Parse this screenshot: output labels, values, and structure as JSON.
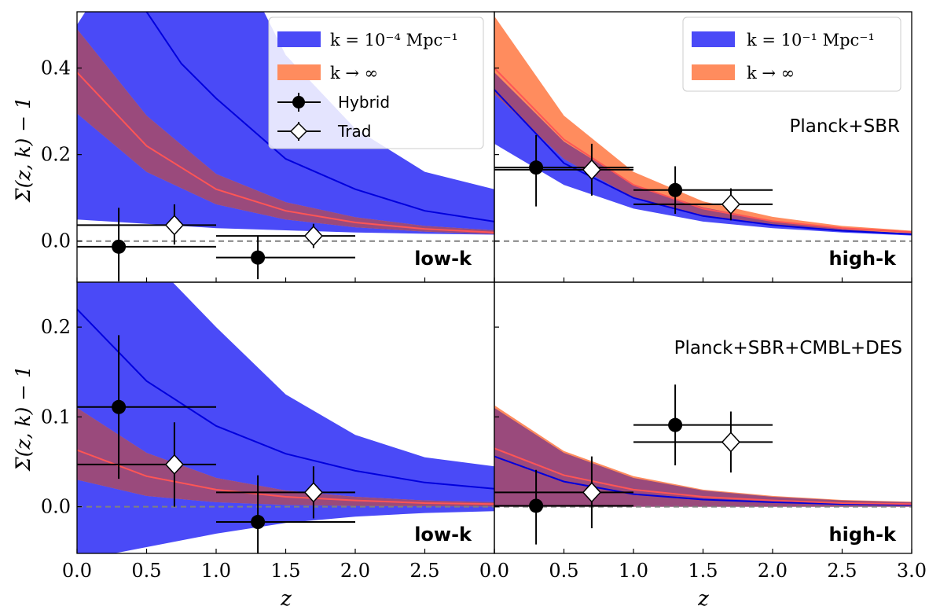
{
  "figure": {
    "ylabel": "Σ(z, k) − 1",
    "xlabel": "z",
    "legend_left": {
      "band_low": "k = 10⁻⁴ Mpc⁻¹",
      "band_inf": "k → ∞",
      "hybrid": "Hybrid",
      "trad": "Trad"
    },
    "legend_right": {
      "band_low": "k = 10⁻¹ Mpc⁻¹",
      "band_inf": "k → ∞"
    }
  },
  "colors": {
    "band_low": "#4a4af7",
    "band_inf": "#ff8c5e",
    "band_overlap": "#9a4a7c",
    "curve_low": "#0000dd",
    "curve_inf": "#ff5555",
    "zero_line": "#808080"
  },
  "chart_data": [
    {
      "type": "line",
      "panel": "top-left",
      "label": "low-k",
      "ylabel": "Σ(z, k) − 1",
      "xlim": [
        0,
        3
      ],
      "ylim": [
        -0.095,
        0.53
      ],
      "xticks": [
        0.0,
        0.5,
        1.0,
        1.5,
        2.0,
        2.5,
        3.0
      ],
      "yticks": [
        0.0,
        0.2,
        0.4
      ],
      "ytick_labels": [
        "0.0",
        "0.2",
        "0.4"
      ],
      "show_xticklabels": false,
      "legend": "top-right",
      "band_low": {
        "x": [
          0,
          0.5,
          1,
          1.5,
          2,
          2.5,
          3
        ],
        "lower": [
          0.05,
          0.04,
          0.03,
          0.025,
          0.02,
          0.017,
          0.015
        ],
        "upper": [
          0.5,
          0.75,
          0.75,
          0.43,
          0.26,
          0.16,
          0.12
        ]
      },
      "curve_low": {
        "x": [
          0.4,
          0.5,
          0.75,
          1,
          1.5,
          2,
          2.5,
          3
        ],
        "y": [
          0.75,
          0.53,
          0.41,
          0.33,
          0.19,
          0.12,
          0.07,
          0.045
        ]
      },
      "band_inf": {
        "x": [
          0,
          0.5,
          1,
          1.5,
          2,
          2.5,
          3
        ],
        "lower": [
          0.295,
          0.16,
          0.085,
          0.05,
          0.032,
          0.022,
          0.016
        ],
        "upper": [
          0.49,
          0.29,
          0.155,
          0.09,
          0.055,
          0.035,
          0.025
        ]
      },
      "curve_inf": {
        "x": [
          0,
          0.5,
          1,
          1.5,
          2,
          2.5,
          3
        ],
        "y": [
          0.39,
          0.22,
          0.12,
          0.07,
          0.043,
          0.028,
          0.02
        ]
      },
      "points": [
        {
          "series": "Hybrid",
          "x": 0.3,
          "xerr": [
            0.3,
            0.7
          ],
          "y": -0.013,
          "yerr": [
            0.08,
            0.09
          ]
        },
        {
          "series": "Trad",
          "x": 0.7,
          "xerr": [
            0.7,
            0.3
          ],
          "y": 0.037,
          "yerr": [
            0.045,
            0.048
          ]
        },
        {
          "series": "Hybrid",
          "x": 1.3,
          "xerr": [
            0.3,
            0.7
          ],
          "y": -0.038,
          "yerr": [
            0.05,
            0.05
          ]
        },
        {
          "series": "Trad",
          "x": 1.7,
          "xerr": [
            0.7,
            0.3
          ],
          "y": 0.012,
          "yerr": [
            0.028,
            0.028
          ]
        }
      ]
    },
    {
      "type": "line",
      "panel": "top-right",
      "label": "high-k",
      "annotation": "Planck+SBR",
      "xlim": [
        0,
        3
      ],
      "ylim": [
        -0.095,
        0.53
      ],
      "xticks": [
        0.0,
        0.5,
        1.0,
        1.5,
        2.0,
        2.5,
        3.0
      ],
      "yticks": [
        0.0,
        0.2,
        0.4
      ],
      "show_xticklabels": false,
      "legend": "top-right",
      "band_low": {
        "x": [
          0,
          0.5,
          1,
          1.5,
          2,
          2.5,
          3
        ],
        "lower": [
          0.225,
          0.13,
          0.075,
          0.045,
          0.03,
          0.02,
          0.013
        ],
        "upper": [
          0.39,
          0.23,
          0.13,
          0.078,
          0.047,
          0.028,
          0.017
        ]
      },
      "curve_low": {
        "x": [
          0,
          0.5,
          1,
          1.5,
          2,
          2.5,
          3
        ],
        "y": [
          0.35,
          0.18,
          0.1,
          0.058,
          0.037,
          0.024,
          0.016
        ]
      },
      "band_inf": {
        "x": [
          0,
          0.5,
          1,
          1.5,
          2,
          2.5,
          3
        ],
        "lower": [
          0.34,
          0.19,
          0.1,
          0.058,
          0.036,
          0.024,
          0.017
        ],
        "upper": [
          0.52,
          0.29,
          0.16,
          0.092,
          0.056,
          0.035,
          0.024
        ]
      },
      "curve_inf": {
        "x": [
          0,
          0.5,
          1,
          1.5,
          2,
          2.5,
          3
        ],
        "y": [
          0.4,
          0.235,
          0.13,
          0.075,
          0.046,
          0.03,
          0.021
        ]
      },
      "points": [
        {
          "series": "Hybrid",
          "x": 0.3,
          "xerr": [
            0.3,
            0.7
          ],
          "y": 0.17,
          "yerr": [
            0.09,
            0.075
          ]
        },
        {
          "series": "Trad",
          "x": 0.7,
          "xerr": [
            0.7,
            0.3
          ],
          "y": 0.165,
          "yerr": [
            0.06,
            0.06
          ]
        },
        {
          "series": "Hybrid",
          "x": 1.3,
          "xerr": [
            0.3,
            0.7
          ],
          "y": 0.118,
          "yerr": [
            0.055,
            0.055
          ]
        },
        {
          "series": "Trad",
          "x": 1.7,
          "xerr": [
            0.7,
            0.3
          ],
          "y": 0.085,
          "yerr": [
            0.037,
            0.037
          ]
        }
      ]
    },
    {
      "type": "line",
      "panel": "bottom-left",
      "label": "low-k",
      "ylabel": "Σ(z, k) − 1",
      "xlabel": "z",
      "xlim": [
        0,
        3
      ],
      "ylim": [
        -0.052,
        0.25
      ],
      "xticks": [
        0.0,
        0.5,
        1.0,
        1.5,
        2.0,
        2.5,
        3.0
      ],
      "xtick_labels": [
        "0.0",
        "0.5",
        "1.0",
        "1.5",
        "2.0",
        "2.5",
        ""
      ],
      "yticks": [
        0.0,
        0.1,
        0.2
      ],
      "ytick_labels": [
        "0.0",
        "0.1",
        "0.2"
      ],
      "show_xticklabels": true,
      "band_low": {
        "x": [
          0,
          0.5,
          1,
          1.5,
          2,
          2.5,
          3
        ],
        "lower": [
          -0.06,
          -0.045,
          -0.03,
          -0.018,
          -0.011,
          -0.007,
          -0.005
        ],
        "upper": [
          0.3,
          0.28,
          0.2,
          0.125,
          0.08,
          0.055,
          0.045
        ]
      },
      "curve_low": {
        "x": [
          0,
          0.5,
          1,
          1.5,
          2,
          2.5,
          3
        ],
        "y": [
          0.22,
          0.14,
          0.09,
          0.059,
          0.04,
          0.027,
          0.02
        ]
      },
      "band_inf": {
        "x": [
          0,
          0.5,
          1,
          1.5,
          2,
          2.5,
          3
        ],
        "lower": [
          0.03,
          0.012,
          0.005,
          0.002,
          0.001,
          0.0005,
          0.0003
        ],
        "upper": [
          0.11,
          0.06,
          0.032,
          0.018,
          0.011,
          0.007,
          0.005
        ]
      },
      "curve_inf": {
        "x": [
          0,
          0.5,
          1,
          1.5,
          2,
          2.5,
          3
        ],
        "y": [
          0.063,
          0.034,
          0.019,
          0.011,
          0.007,
          0.004,
          0.003
        ]
      },
      "points": [
        {
          "series": "Hybrid",
          "x": 0.3,
          "xerr": [
            0.3,
            0.7
          ],
          "y": 0.111,
          "yerr": [
            0.08,
            0.08
          ]
        },
        {
          "series": "Trad",
          "x": 0.7,
          "xerr": [
            0.7,
            0.3
          ],
          "y": 0.047,
          "yerr": [
            0.047,
            0.047
          ]
        },
        {
          "series": "Hybrid",
          "x": 1.3,
          "xerr": [
            0.3,
            0.7
          ],
          "y": -0.017,
          "yerr": [
            0.052,
            0.052
          ]
        },
        {
          "series": "Trad",
          "x": 1.7,
          "xerr": [
            0.7,
            0.3
          ],
          "y": 0.016,
          "yerr": [
            0.029,
            0.029
          ]
        }
      ]
    },
    {
      "type": "line",
      "panel": "bottom-right",
      "label": "high-k",
      "annotation": "Planck+SBR+CMBL+DES",
      "xlabel": "z",
      "xlim": [
        0,
        3
      ],
      "ylim": [
        -0.052,
        0.25
      ],
      "xticks": [
        0.0,
        0.5,
        1.0,
        1.5,
        2.0,
        2.5,
        3.0
      ],
      "xtick_labels": [
        "0.0",
        "0.5",
        "1.0",
        "1.5",
        "2.0",
        "2.5",
        "3.0"
      ],
      "yticks": [
        0.0,
        0.1,
        0.2
      ],
      "show_xticklabels": true,
      "band_low": {
        "x": [
          0,
          0.5,
          1,
          1.5,
          2,
          2.5,
          3
        ],
        "lower": [
          0.0,
          0.0,
          0.0,
          0.0,
          0.0,
          0.0,
          0.0
        ],
        "upper": [
          0.11,
          0.06,
          0.032,
          0.018,
          0.011,
          0.007,
          0.005
        ]
      },
      "curve_low": {
        "x": [
          0,
          0.5,
          1,
          1.5,
          2,
          2.5,
          3
        ],
        "y": [
          0.056,
          0.028,
          0.014,
          0.008,
          0.005,
          0.003,
          0.002
        ]
      },
      "band_inf": {
        "x": [
          0,
          0.5,
          1,
          1.5,
          2,
          2.5,
          3
        ],
        "lower": [
          0.0,
          0.0,
          0.0,
          0.0,
          0.0,
          0.0,
          0.0
        ],
        "upper": [
          0.113,
          0.062,
          0.034,
          0.019,
          0.012,
          0.0075,
          0.0055
        ]
      },
      "curve_inf": {
        "x": [
          0,
          0.5,
          1,
          1.5,
          2,
          2.5,
          3
        ],
        "y": [
          0.065,
          0.035,
          0.019,
          0.011,
          0.007,
          0.004,
          0.003
        ]
      },
      "points": [
        {
          "series": "Hybrid",
          "x": 0.3,
          "xerr": [
            0.3,
            0.7
          ],
          "y": 0.001,
          "yerr": [
            0.043,
            0.04
          ]
        },
        {
          "series": "Trad",
          "x": 0.7,
          "xerr": [
            0.7,
            0.3
          ],
          "y": 0.016,
          "yerr": [
            0.04,
            0.04
          ]
        },
        {
          "series": "Hybrid",
          "x": 1.3,
          "xerr": [
            0.3,
            0.7
          ],
          "y": 0.091,
          "yerr": [
            0.045,
            0.045
          ]
        },
        {
          "series": "Trad",
          "x": 1.7,
          "xerr": [
            0.7,
            0.3
          ],
          "y": 0.072,
          "yerr": [
            0.034,
            0.034
          ]
        }
      ]
    }
  ]
}
